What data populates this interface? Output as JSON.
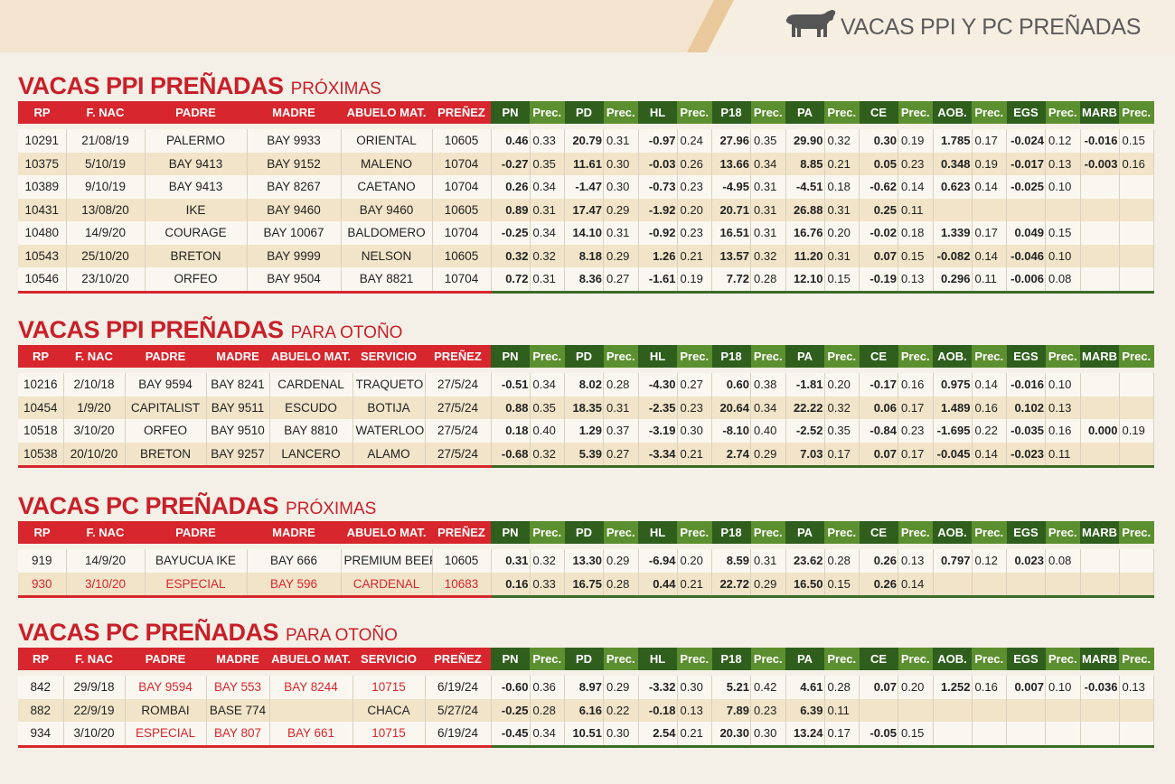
{
  "header": {
    "title": "VACAS PPI Y PC PREÑADAS"
  },
  "highlight_color": "#d7262d",
  "sections": [
    {
      "title": "VACAS PPI PREÑADAS",
      "subtitle": "PRÓXIMAS",
      "columns": [
        "RP",
        "F. NAC",
        "PADRE",
        "MADRE",
        "ABUELO MAT.",
        "PREÑEZ",
        "PN",
        "Prec.",
        "PD",
        "Prec.",
        "HL",
        "Prec.",
        "P18",
        "Prec.",
        "PA",
        "Prec.",
        "CE",
        "Prec.",
        "AOB.",
        "Prec.",
        "EGS",
        "Prec.",
        "MARB",
        "Prec."
      ],
      "rows": [
        [
          "10291",
          "21/08/19",
          "PALERMO",
          "BAY 9933",
          "ORIENTAL",
          "10605",
          "0.46",
          "0.33",
          "20.79",
          "0.31",
          "-0.97",
          "0.24",
          "27.96",
          "0.35",
          "29.90",
          "0.32",
          "0.30",
          "0.19",
          "1.785",
          "0.17",
          "-0.024",
          "0.12",
          "-0.016",
          "0.15"
        ],
        [
          "10375",
          "5/10/19",
          "BAY 9413",
          "BAY 9152",
          "MALENO",
          "10704",
          "-0.27",
          "0.35",
          "11.61",
          "0.30",
          "-0.03",
          "0.26",
          "13.66",
          "0.34",
          "8.85",
          "0.21",
          "0.05",
          "0.23",
          "0.348",
          "0.19",
          "-0.017",
          "0.13",
          "-0.003",
          "0.16"
        ],
        [
          "10389",
          "9/10/19",
          "BAY 9413",
          "BAY 8267",
          "CAETANO",
          "10704",
          "0.26",
          "0.34",
          "-1.47",
          "0.30",
          "-0.73",
          "0.23",
          "-4.95",
          "0.31",
          "-4.51",
          "0.18",
          "-0.62",
          "0.14",
          "0.623",
          "0.14",
          "-0.025",
          "0.10",
          null,
          null
        ],
        [
          "10431",
          "13/08/20",
          "IKE",
          "BAY 9460",
          "BAY 9460",
          "10605",
          "0.89",
          "0.31",
          "17.47",
          "0.29",
          "-1.92",
          "0.20",
          "20.71",
          "0.31",
          "26.88",
          "0.31",
          "0.25",
          "0.11",
          null,
          null,
          null,
          null,
          null,
          null
        ],
        [
          "10480",
          "14/9/20",
          "COURAGE",
          "BAY 10067",
          "BALDOMERO",
          "10704",
          "-0.25",
          "0.34",
          "14.10",
          "0.31",
          "-0.92",
          "0.23",
          "16.51",
          "0.31",
          "16.76",
          "0.20",
          "-0.02",
          "0.18",
          "1.339",
          "0.17",
          "0.049",
          "0.15",
          null,
          null
        ],
        [
          "10543",
          "25/10/20",
          "BRETON",
          "BAY 9999",
          "NELSON",
          "10605",
          "0.32",
          "0.32",
          "8.18",
          "0.29",
          "1.26",
          "0.21",
          "13.57",
          "0.32",
          "11.20",
          "0.31",
          "0.07",
          "0.15",
          "-0.082",
          "0.14",
          "-0.046",
          "0.10",
          null,
          null
        ],
        [
          "10546",
          "23/10/20",
          "ORFEO",
          "BAY 9504",
          "BAY 8821",
          "10704",
          "0.72",
          "0.31",
          "8.36",
          "0.27",
          "-1.61",
          "0.19",
          "7.72",
          "0.28",
          "12.10",
          "0.15",
          "-0.19",
          "0.13",
          "0.296",
          "0.11",
          "-0.006",
          "0.08",
          null,
          null
        ]
      ],
      "highlighted_cells": []
    },
    {
      "title": "VACAS PPI PREÑADAS",
      "subtitle": "PARA OTOÑO",
      "columns": [
        "RP",
        "F. NAC",
        "PADRE",
        "MADRE",
        "ABUELO MAT.",
        "SERVICIO",
        "PREÑEZ",
        "PN",
        "Prec.",
        "PD",
        "Prec.",
        "HL",
        "Prec.",
        "P18",
        "Prec.",
        "PA",
        "Prec.",
        "CE",
        "Prec.",
        "AOB.",
        "Prec.",
        "EGS",
        "Prec.",
        "MARB",
        "Prec."
      ],
      "rows": [
        [
          "10216",
          "2/10/18",
          "BAY 9594",
          "BAY 8241",
          "CARDENAL",
          "TRAQUETO",
          "27/5/24",
          "-0.51",
          "0.34",
          "8.02",
          "0.28",
          "-4.30",
          "0.27",
          "0.60",
          "0.38",
          "-1.81",
          "0.20",
          "-0.17",
          "0.16",
          "0.975",
          "0.14",
          "-0.016",
          "0.10",
          null,
          null
        ],
        [
          "10454",
          "1/9/20",
          "CAPITALIST",
          "BAY 9511",
          "ESCUDO",
          "BOTIJA",
          "27/5/24",
          "0.88",
          "0.35",
          "18.35",
          "0.31",
          "-2.35",
          "0.23",
          "20.64",
          "0.34",
          "22.22",
          "0.32",
          "0.06",
          "0.17",
          "1.489",
          "0.16",
          "0.102",
          "0.13",
          null,
          null
        ],
        [
          "10518",
          "3/10/20",
          "ORFEO",
          "BAY 9510",
          "BAY 8810",
          "WATERLOO",
          "27/5/24",
          "0.18",
          "0.40",
          "1.29",
          "0.37",
          "-3.19",
          "0.30",
          "-8.10",
          "0.40",
          "-2.52",
          "0.35",
          "-0.84",
          "0.23",
          "-1.695",
          "0.22",
          "-0.035",
          "0.16",
          "0.000",
          "0.19"
        ],
        [
          "10538",
          "20/10/20",
          "BRETON",
          "BAY 9257",
          "LANCERO",
          "ALAMO",
          "27/5/24",
          "-0.68",
          "0.32",
          "5.39",
          "0.27",
          "-3.34",
          "0.21",
          "2.74",
          "0.29",
          "7.03",
          "0.17",
          "0.07",
          "0.17",
          "-0.045",
          "0.14",
          "-0.023",
          "0.11",
          null,
          null
        ]
      ],
      "highlighted_cells": []
    },
    {
      "title": "VACAS PC PREÑADAS",
      "subtitle": "PRÓXIMAS",
      "columns": [
        "RP",
        "F. NAC",
        "PADRE",
        "MADRE",
        "ABUELO MAT.",
        "PREÑEZ",
        "PN",
        "Prec.",
        "PD",
        "Prec.",
        "HL",
        "Prec.",
        "P18",
        "Prec.",
        "PA",
        "Prec.",
        "CE",
        "Prec.",
        "AOB.",
        "Prec.",
        "EGS",
        "Prec.",
        "MARB",
        "Prec."
      ],
      "rows": [
        [
          "919",
          "14/9/20",
          "BAYUCUA IKE",
          "BAY 666",
          "PREMIUM BEEF",
          "10605",
          "0.31",
          "0.32",
          "13.30",
          "0.29",
          "-6.94",
          "0.20",
          "8.59",
          "0.31",
          "23.62",
          "0.28",
          "0.26",
          "0.13",
          "0.797",
          "0.12",
          "0.023",
          "0.08",
          null,
          null
        ],
        [
          "930",
          "3/10/20",
          "ESPECIAL",
          "BAY 596",
          "CARDENAL",
          "10683",
          "0.16",
          "0.33",
          "16.75",
          "0.28",
          "0.44",
          "0.21",
          "22.72",
          "0.29",
          "16.50",
          "0.15",
          "0.26",
          "0.14",
          null,
          null,
          null,
          null,
          null,
          null
        ]
      ],
      "highlighted_cells": [
        [
          1,
          0
        ],
        [
          1,
          1
        ],
        [
          1,
          2
        ],
        [
          1,
          3
        ],
        [
          1,
          4
        ],
        [
          1,
          5
        ]
      ]
    },
    {
      "title": "VACAS PC PREÑADAS",
      "subtitle": "PARA OTOÑO",
      "columns": [
        "RP",
        "F. NAC",
        "PADRE",
        "MADRE",
        "ABUELO MAT.",
        "SERVICIO",
        "PREÑEZ",
        "PN",
        "Prec.",
        "PD",
        "Prec.",
        "HL",
        "Prec.",
        "P18",
        "Prec.",
        "PA",
        "Prec.",
        "CE",
        "Prec.",
        "AOB.",
        "Prec.",
        "EGS",
        "Prec.",
        "MARB",
        "Prec."
      ],
      "rows": [
        [
          "842",
          "29/9/18",
          "BAY 9594",
          "BAY 553",
          "BAY 8244",
          "10715",
          "6/19/24",
          "-0.60",
          "0.36",
          "8.97",
          "0.29",
          "-3.32",
          "0.30",
          "5.21",
          "0.42",
          "4.61",
          "0.28",
          "0.07",
          "0.20",
          "1.252",
          "0.16",
          "0.007",
          "0.10",
          "-0.036",
          "0.13"
        ],
        [
          "882",
          "22/9/19",
          "ROMBAI",
          "BASE 774",
          null,
          "CHACA",
          "5/27/24",
          "-0.25",
          "0.28",
          "6.16",
          "0.22",
          "-0.18",
          "0.13",
          "7.89",
          "0.23",
          "6.39",
          "0.11",
          null,
          null,
          null,
          null,
          null,
          null,
          null,
          null
        ],
        [
          "934",
          "3/10/20",
          "ESPECIAL",
          "BAY 807",
          "BAY 661",
          "10715",
          "6/19/24",
          "-0.45",
          "0.34",
          "10.51",
          "0.30",
          "2.54",
          "0.21",
          "20.30",
          "0.30",
          "13.24",
          "0.17",
          "-0.05",
          "0.15",
          null,
          null,
          null,
          null,
          null,
          null
        ]
      ],
      "highlighted_cells": [
        [
          0,
          2
        ],
        [
          0,
          3
        ],
        [
          0,
          4
        ],
        [
          0,
          5
        ],
        [
          2,
          2
        ],
        [
          2,
          3
        ],
        [
          2,
          4
        ],
        [
          2,
          5
        ]
      ]
    }
  ]
}
